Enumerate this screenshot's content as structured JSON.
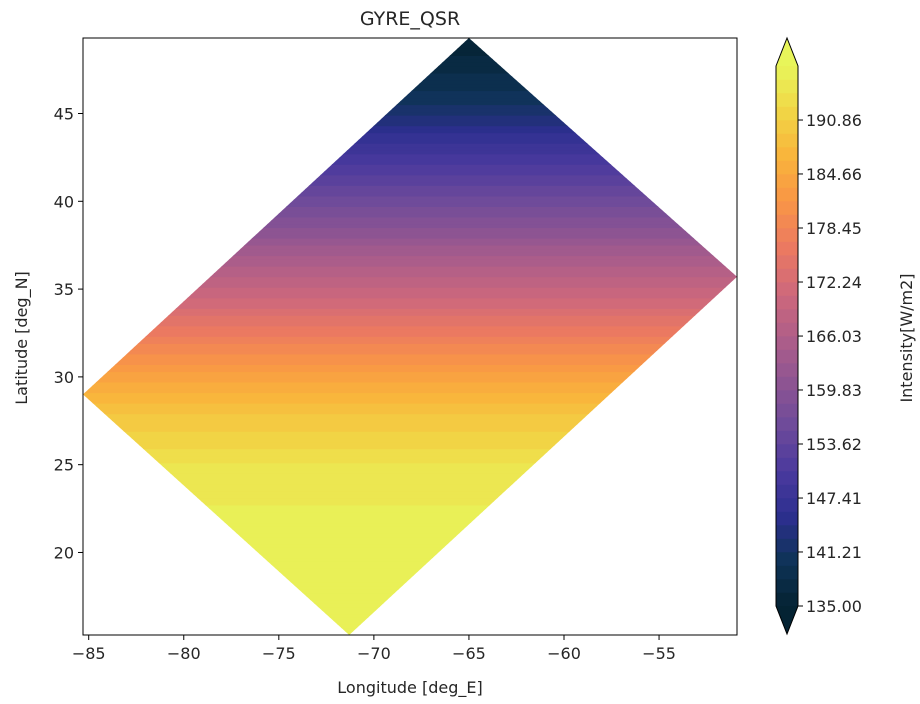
{
  "chart_data": {
    "type": "heatmap",
    "title": "GYRE_QSR",
    "xlabel": "Longitude [deg_E]",
    "ylabel": "Latitude [deg_N]",
    "xlim": [
      -85.3,
      -50.9
    ],
    "ylim": [
      15.3,
      49.3
    ],
    "xticks": [
      -85,
      -80,
      -75,
      -70,
      -65,
      -60,
      -55
    ],
    "xtick_labels": [
      "−85",
      "−80",
      "−75",
      "−70",
      "−65",
      "−60",
      "−55"
    ],
    "yticks": [
      20,
      25,
      30,
      35,
      40,
      45
    ],
    "ytick_labels": [
      "20",
      "25",
      "30",
      "35",
      "40",
      "45"
    ],
    "domain_polygon": [
      [
        -85.3,
        29.0
      ],
      [
        -65.0,
        49.3
      ],
      [
        -50.9,
        35.7
      ],
      [
        -71.3,
        15.3
      ]
    ],
    "field": {
      "lat_range": [
        15.3,
        49.3
      ],
      "values_by_lat": [
        {
          "lat": 15.3,
          "value": 197
        },
        {
          "lat": 22.0,
          "value": 196
        },
        {
          "lat": 25.0,
          "value": 194
        },
        {
          "lat": 28.0,
          "value": 189
        },
        {
          "lat": 31.0,
          "value": 181
        },
        {
          "lat": 34.0,
          "value": 172
        },
        {
          "lat": 37.0,
          "value": 164
        },
        {
          "lat": 40.0,
          "value": 156
        },
        {
          "lat": 43.0,
          "value": 148
        },
        {
          "lat": 46.0,
          "value": 140
        },
        {
          "lat": 49.3,
          "value": 135
        }
      ]
    },
    "colorbar": {
      "label": "Intensity[W/m2]",
      "colormap": "thermal",
      "vmin": 135.0,
      "vmax": 197.07,
      "levels": 40,
      "extend": "both",
      "ticks": [
        135.0,
        141.21,
        147.41,
        153.62,
        159.83,
        166.03,
        172.24,
        178.45,
        184.66,
        190.86
      ],
      "tick_labels": [
        "135.00",
        "141.21",
        "147.41",
        "153.62",
        "159.83",
        "166.03",
        "172.24",
        "178.45",
        "184.66",
        "190.86"
      ],
      "color_stops": [
        "#042333",
        "#0f3357",
        "#2c2f8f",
        "#4b3a9e",
        "#6d4a9a",
        "#8f5492",
        "#b05e88",
        "#d0697a",
        "#ec7a60",
        "#f99646",
        "#f9b43b",
        "#f1d646",
        "#e8f55a"
      ]
    }
  }
}
